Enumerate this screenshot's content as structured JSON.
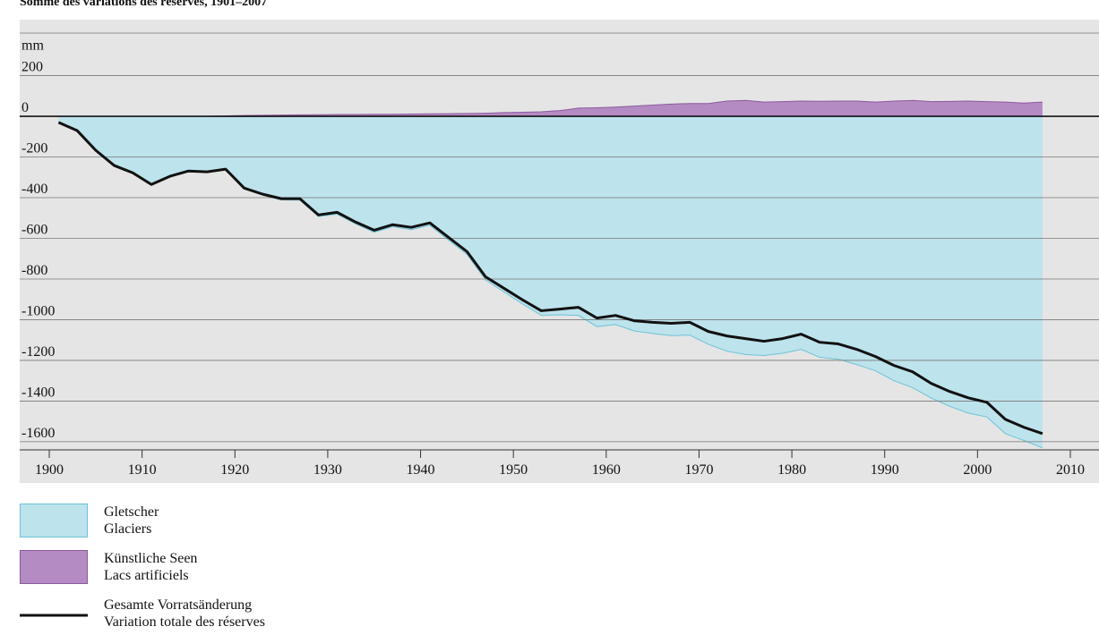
{
  "chart_data": {
    "type": "area",
    "title": "Somme des variations des réserves, 1901–2007",
    "y_unit_label": "mm",
    "x": [
      1901,
      1903,
      1905,
      1907,
      1909,
      1911,
      1913,
      1915,
      1917,
      1919,
      1921,
      1923,
      1925,
      1927,
      1929,
      1931,
      1933,
      1935,
      1937,
      1939,
      1941,
      1943,
      1945,
      1947,
      1949,
      1951,
      1953,
      1955,
      1957,
      1959,
      1961,
      1963,
      1965,
      1967,
      1969,
      1971,
      1973,
      1975,
      1977,
      1979,
      1981,
      1983,
      1985,
      1987,
      1989,
      1991,
      1993,
      1995,
      1997,
      1999,
      2001,
      2003,
      2005,
      2007
    ],
    "series": [
      {
        "name": "Gletscher\nGlaciers",
        "kind": "area",
        "color": "#bde3ec",
        "edge": "#6cc3d6",
        "values": [
          -30,
          -70,
          -167,
          -242,
          -278,
          -335,
          -295,
          -269,
          -273,
          -262,
          -357,
          -388,
          -411,
          -412,
          -493,
          -481,
          -529,
          -570,
          -543,
          -557,
          -536,
          -608,
          -679,
          -804,
          -864,
          -923,
          -978,
          -976,
          -979,
          -1034,
          -1024,
          -1055,
          -1068,
          -1078,
          -1076,
          -1121,
          -1155,
          -1171,
          -1176,
          -1165,
          -1146,
          -1185,
          -1194,
          -1221,
          -1251,
          -1300,
          -1334,
          -1385,
          -1426,
          -1459,
          -1478,
          -1560,
          -1594,
          -1630
        ]
      },
      {
        "name": "Künstliche Seen\nLacs artificiels",
        "kind": "area",
        "color": "#b48bc2",
        "edge": "#8d5a9e",
        "values": [
          0,
          0,
          0,
          0,
          0,
          0,
          0,
          0,
          0,
          2,
          4,
          5,
          6,
          7,
          8,
          9,
          9,
          10,
          10,
          11,
          12,
          13,
          14,
          15,
          18,
          20,
          22,
          28,
          40,
          42,
          45,
          50,
          55,
          60,
          63,
          63,
          75,
          78,
          70,
          72,
          75,
          74,
          75,
          75,
          70,
          75,
          78,
          72,
          73,
          75,
          72,
          70,
          65,
          70
        ]
      },
      {
        "name": "Gesamte Vorratsänderung\nVariation totale des réserves",
        "kind": "line",
        "color": "#111111",
        "values": [
          -30,
          -70,
          -167,
          -242,
          -278,
          -335,
          -295,
          -269,
          -273,
          -260,
          -353,
          -383,
          -405,
          -405,
          -485,
          -472,
          -520,
          -560,
          -533,
          -546,
          -524,
          -595,
          -665,
          -789,
          -846,
          -903,
          -956,
          -948,
          -939,
          -992,
          -979,
          -1005,
          -1013,
          -1018,
          -1013,
          -1058,
          -1080,
          -1093,
          -1106,
          -1093,
          -1071,
          -1111,
          -1119,
          -1146,
          -1181,
          -1225,
          -1256,
          -1313,
          -1353,
          -1384,
          -1406,
          -1490,
          -1529,
          -1560
        ]
      }
    ],
    "xlim": [
      1896.8,
      2013.2
    ],
    "xticks": [
      1900,
      1910,
      1920,
      1930,
      1940,
      1950,
      1960,
      1970,
      1980,
      1990,
      2000,
      2010
    ],
    "ylim": [
      -1640,
      475
    ],
    "yticks": [
      -1600,
      -1400,
      -1200,
      -1000,
      -800,
      -600,
      -400,
      -200,
      0,
      200
    ],
    "grid": true
  }
}
